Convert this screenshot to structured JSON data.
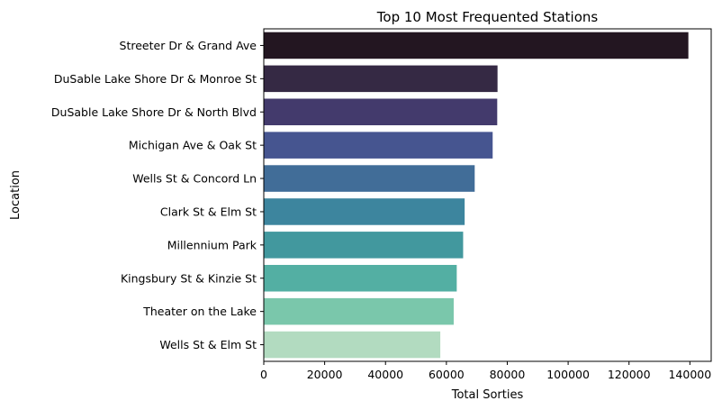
{
  "chart_data": {
    "type": "bar",
    "orientation": "horizontal",
    "title": "Top 10 Most Frequented Stations",
    "xlabel": "Total Sorties",
    "ylabel": "Location",
    "categories": [
      "Streeter Dr & Grand Ave",
      "DuSable Lake Shore Dr & Monroe St",
      "DuSable Lake Shore Dr & North Blvd",
      "Michigan Ave & Oak St",
      "Wells St & Concord Ln",
      "Clark St & Elm St",
      "Millennium Park",
      "Kingsbury St & Kinzie St",
      "Theater on the Lake",
      "Wells St & Elm St"
    ],
    "values": [
      139500,
      76800,
      76700,
      75200,
      69300,
      66000,
      65500,
      63400,
      62400,
      58000
    ],
    "colors": [
      "#231621",
      "#352944",
      "#433a6c",
      "#465590",
      "#416d98",
      "#3d859e",
      "#42989e",
      "#53afa3",
      "#7ac7ab",
      "#b2dbc0"
    ],
    "xlim": [
      0,
      147000
    ],
    "xticks": [
      0,
      20000,
      40000,
      60000,
      80000,
      100000,
      120000,
      140000
    ],
    "grid": false,
    "legend": "none"
  }
}
